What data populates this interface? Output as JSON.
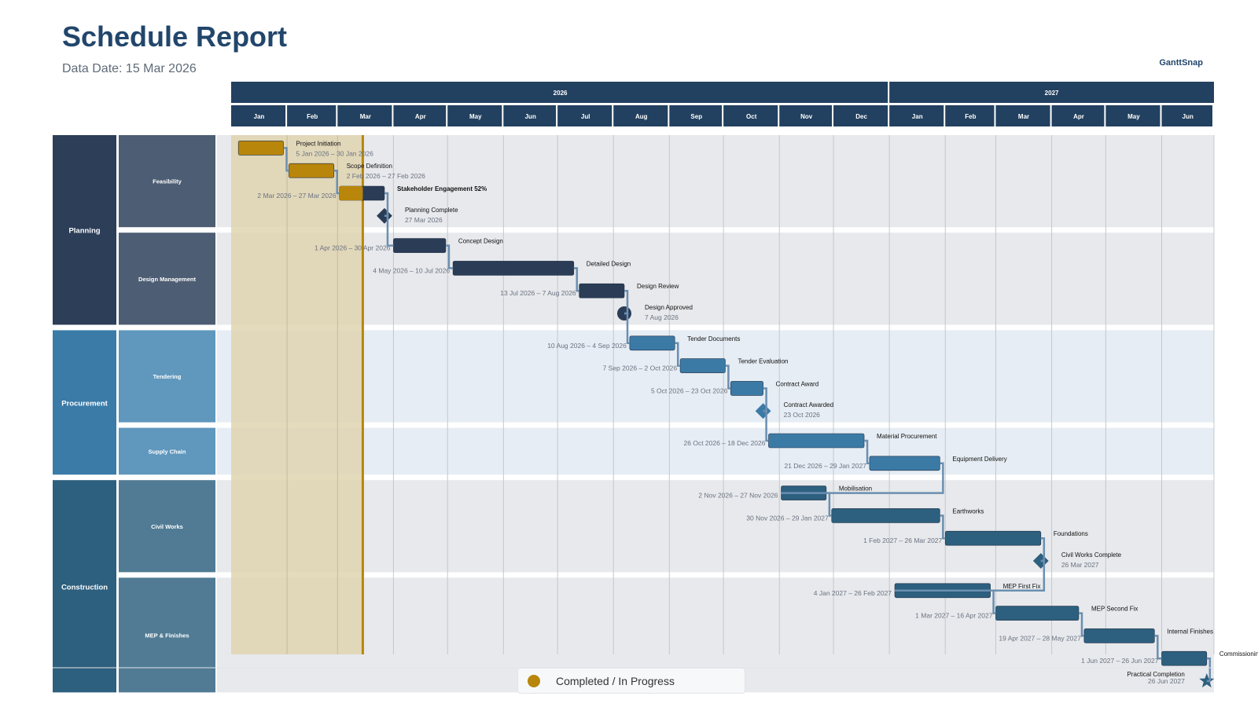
{
  "header": {
    "title": "Schedule Report",
    "data_date_label": "Data Date: 15 Mar 2026",
    "brand": "GanttSnap"
  },
  "legend": {
    "label": "Completed / In Progress",
    "color": "#b8860b"
  },
  "colors": {
    "header_bg": "#22405f",
    "planning": "#2c3e58",
    "planning_sub": "#4d5d73",
    "procurement": "#3a7ba8",
    "procurement_sub": "#5f97bd",
    "construction": "#2d5f7e",
    "construction_sub": "#517b94",
    "completed": "#b8860b",
    "progress_shade": "#dfd3b0"
  },
  "chart_data": {
    "type": "gantt",
    "data_date": "2026-03-15",
    "x_range": [
      "2026-01-01",
      "2027-06-30"
    ],
    "timescale": {
      "years": [
        "2026",
        "2027"
      ],
      "months": [
        "Jan",
        "Feb",
        "Mar",
        "Apr",
        "May",
        "Jun",
        "Jul",
        "Aug",
        "Sep",
        "Oct",
        "Nov",
        "Dec",
        "Jan",
        "Feb",
        "Mar",
        "Apr",
        "May",
        "Jun"
      ]
    },
    "groups": [
      {
        "name": "Planning",
        "color_key": "planning",
        "subgroups": [
          {
            "name": "Feasibility"
          },
          {
            "name": "Design Management"
          }
        ]
      },
      {
        "name": "Procurement",
        "color_key": "procurement",
        "subgroups": [
          {
            "name": "Tendering"
          },
          {
            "name": "Supply Chain"
          }
        ]
      },
      {
        "name": "Construction",
        "color_key": "construction",
        "subgroups": [
          {
            "name": "Civil Works"
          },
          {
            "name": "MEP & Finishes"
          }
        ]
      }
    ],
    "tasks": [
      {
        "name": "Project Initiation",
        "dates": "5 Jan 2026 – 30 Jan 2026",
        "start": "2026-01-05",
        "end": "2026-01-30",
        "type": "task",
        "status": "completed",
        "subgroup": "Feasibility",
        "label_side": "right"
      },
      {
        "name": "Scope Definition",
        "dates": "2 Feb 2026 – 27 Feb 2026",
        "start": "2026-02-02",
        "end": "2026-02-27",
        "type": "task",
        "status": "completed",
        "subgroup": "Feasibility",
        "label_side": "right"
      },
      {
        "name": "Stakeholder Engagement",
        "progress_label": "52%",
        "progress": 0.52,
        "dates": "2 Mar 2026 – 27 Mar 2026",
        "start": "2026-03-02",
        "end": "2026-03-27",
        "type": "task",
        "status": "in_progress",
        "subgroup": "Feasibility",
        "label_side": "left"
      },
      {
        "name": "Planning Complete",
        "dates": "27 Mar 2026",
        "start": "2026-03-27",
        "end": "2026-03-27",
        "type": "milestone",
        "shape": "diamond",
        "subgroup": "Feasibility"
      },
      {
        "name": "Concept Design",
        "dates": "1 Apr 2026 – 30 Apr 2026",
        "start": "2026-04-01",
        "end": "2026-04-30",
        "type": "task",
        "subgroup": "Design Management",
        "label_side": "left"
      },
      {
        "name": "Detailed Design",
        "dates": "4 May 2026 – 10 Jul 2026",
        "start": "2026-05-04",
        "end": "2026-07-10",
        "type": "task",
        "subgroup": "Design Management",
        "label_side": "left"
      },
      {
        "name": "Design Review",
        "dates": "13 Jul 2026 – 7 Aug 2026",
        "start": "2026-07-13",
        "end": "2026-08-07",
        "type": "task",
        "subgroup": "Design Management",
        "label_side": "left"
      },
      {
        "name": "Design Approved",
        "dates": "7 Aug 2026",
        "start": "2026-08-07",
        "end": "2026-08-07",
        "type": "milestone",
        "shape": "circle",
        "subgroup": "Design Management"
      },
      {
        "name": "Tender Documents",
        "dates": "10 Aug 2026 – 4 Sep 2026",
        "start": "2026-08-10",
        "end": "2026-09-04",
        "type": "task",
        "subgroup": "Tendering",
        "label_side": "left"
      },
      {
        "name": "Tender Evaluation",
        "dates": "7 Sep 2026 – 2 Oct 2026",
        "start": "2026-09-07",
        "end": "2026-10-02",
        "type": "task",
        "subgroup": "Tendering",
        "label_side": "left"
      },
      {
        "name": "Contract Award",
        "dates": "5 Oct 2026 – 23 Oct 2026",
        "start": "2026-10-05",
        "end": "2026-10-23",
        "type": "task",
        "subgroup": "Tendering",
        "label_side": "left"
      },
      {
        "name": "Contract Awarded",
        "dates": "23 Oct 2026",
        "start": "2026-10-23",
        "end": "2026-10-23",
        "type": "milestone",
        "shape": "diamond",
        "subgroup": "Tendering"
      },
      {
        "name": "Material Procurement",
        "dates": "26 Oct 2026 – 18 Dec 2026",
        "start": "2026-10-26",
        "end": "2026-12-18",
        "type": "task",
        "subgroup": "Supply Chain",
        "label_side": "left"
      },
      {
        "name": "Equipment Delivery",
        "dates": "21 Dec 2026 – 29 Jan 2027",
        "start": "2026-12-21",
        "end": "2027-01-29",
        "type": "task",
        "subgroup": "Supply Chain",
        "label_side": "left"
      },
      {
        "name": "Mobilisation",
        "dates": "2 Nov 2026 – 27 Nov 2026",
        "start": "2026-11-02",
        "end": "2026-11-27",
        "type": "task",
        "subgroup": "Civil Works",
        "label_side": "left"
      },
      {
        "name": "Earthworks",
        "dates": "30 Nov 2026 – 29 Jan 2027",
        "start": "2026-11-30",
        "end": "2027-01-29",
        "type": "task",
        "subgroup": "Civil Works",
        "label_side": "left"
      },
      {
        "name": "Foundations",
        "dates": "1 Feb 2027 – 26 Mar 2027",
        "start": "2027-02-01",
        "end": "2027-03-26",
        "type": "task",
        "subgroup": "Civil Works",
        "label_side": "left"
      },
      {
        "name": "Civil Works Complete",
        "dates": "26 Mar 2027",
        "start": "2027-03-26",
        "end": "2027-03-26",
        "type": "milestone",
        "shape": "diamond",
        "subgroup": "Civil Works"
      },
      {
        "name": "MEP First Fix",
        "dates": "4 Jan 2027 – 26 Feb 2027",
        "start": "2027-01-04",
        "end": "2027-02-26",
        "type": "task",
        "subgroup": "MEP & Finishes",
        "label_side": "left"
      },
      {
        "name": "MEP Second Fix",
        "dates": "1 Mar 2027 – 16 Apr 2027",
        "start": "2027-03-01",
        "end": "2027-04-16",
        "type": "task",
        "subgroup": "MEP & Finishes",
        "label_side": "left"
      },
      {
        "name": "Internal Finishes",
        "dates": "19 Apr 2027 – 28 May 2027",
        "start": "2027-04-19",
        "end": "2027-05-28",
        "type": "task",
        "subgroup": "MEP & Finishes",
        "label_side": "left"
      },
      {
        "name": "Commissioning",
        "dates": "1 Jun 2027 – 26 Jun 2027",
        "start": "2027-06-01",
        "end": "2027-06-26",
        "type": "task",
        "subgroup": "MEP & Finishes",
        "label_side": "left"
      },
      {
        "name": "Practical Completion",
        "dates": "26 Jun 2027",
        "start": "2027-06-26",
        "end": "2027-06-26",
        "type": "milestone",
        "shape": "star",
        "subgroup": "MEP & Finishes"
      }
    ]
  }
}
